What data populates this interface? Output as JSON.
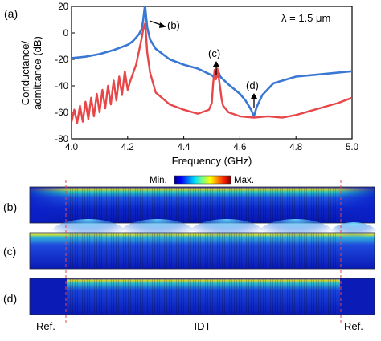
{
  "panel_a_label": "(a)",
  "wavelength_label": "λ = 1.5 μm",
  "chart_data": {
    "type": "line",
    "xlabel": "Frequency (GHz)",
    "ylabel_line1": "Conductance/",
    "ylabel_line2": "admittance (dB)",
    "xlim": [
      4.0,
      5.0
    ],
    "ylim": [
      -80,
      20
    ],
    "xticks": [
      "4.0",
      "4.2",
      "4.4",
      "4.6",
      "4.8",
      "5.0"
    ],
    "yticks": [
      "-80",
      "-60",
      "-40",
      "-20",
      "0",
      "20"
    ],
    "colors": {
      "admittance": "#3a78d4",
      "conductance": "#e8474a"
    },
    "admittance": {
      "x": [
        4.0,
        4.05,
        4.1,
        4.15,
        4.2,
        4.22,
        4.24,
        4.25,
        4.255,
        4.262,
        4.265,
        4.27,
        4.28,
        4.3,
        4.35,
        4.4,
        4.45,
        4.5,
        4.51,
        4.515,
        4.52,
        4.525,
        4.53,
        4.54,
        4.56,
        4.6,
        4.62,
        4.64,
        4.65,
        4.66,
        4.68,
        4.72,
        4.8,
        4.9,
        5.0
      ],
      "y": [
        -19,
        -18,
        -16,
        -13,
        -9,
        -6,
        -1,
        3,
        9,
        21,
        14,
        4,
        -5,
        -12,
        -20,
        -24,
        -27,
        -32,
        -34,
        -31,
        -33,
        -30,
        -33,
        -35,
        -39,
        -46,
        -51,
        -58,
        -63,
        -56,
        -47,
        -38,
        -33,
        -31,
        -29
      ]
    },
    "conductance": {
      "x": [
        4.0,
        4.01,
        4.02,
        4.03,
        4.04,
        4.05,
        4.06,
        4.07,
        4.08,
        4.09,
        4.1,
        4.11,
        4.12,
        4.13,
        4.14,
        4.15,
        4.16,
        4.17,
        4.18,
        4.19,
        4.2,
        4.21,
        4.22,
        4.23,
        4.24,
        4.25,
        4.255,
        4.262,
        4.265,
        4.27,
        4.28,
        4.3,
        4.35,
        4.4,
        4.45,
        4.49,
        4.5,
        4.505,
        4.51,
        4.515,
        4.52,
        4.525,
        4.53,
        4.535,
        4.54,
        4.56,
        4.6,
        4.65,
        4.7,
        4.75,
        4.8,
        4.85,
        4.9,
        4.95,
        5.0
      ],
      "y": [
        -67,
        -58,
        -68,
        -55,
        -67,
        -52,
        -65,
        -49,
        -63,
        -46,
        -60,
        -43,
        -57,
        -40,
        -54,
        -36,
        -51,
        -33,
        -47,
        -29,
        -43,
        -36,
        -30,
        -24,
        -14,
        -4,
        2,
        7,
        0,
        -15,
        -30,
        -45,
        -54,
        -58,
        -61,
        -58,
        -53,
        -38,
        -28,
        -35,
        -27,
        -34,
        -42,
        -50,
        -55,
        -60,
        -63,
        -64,
        -63,
        -64,
        -62,
        -59,
        -56,
        -53,
        -49
      ]
    }
  },
  "colorbar": {
    "min_label": "Min.",
    "max_label": "Max."
  },
  "field_panels": [
    {
      "label": "(b)",
      "mode": "b"
    },
    {
      "label": "(c)",
      "mode": "c"
    },
    {
      "label": "(d)",
      "mode": "d"
    }
  ],
  "annotations": {
    "b": "(b)",
    "c": "(c)",
    "d": "(d)"
  },
  "bottom_labels": {
    "ref_left": "Ref.",
    "idt": "IDT",
    "ref_right": "Ref."
  }
}
